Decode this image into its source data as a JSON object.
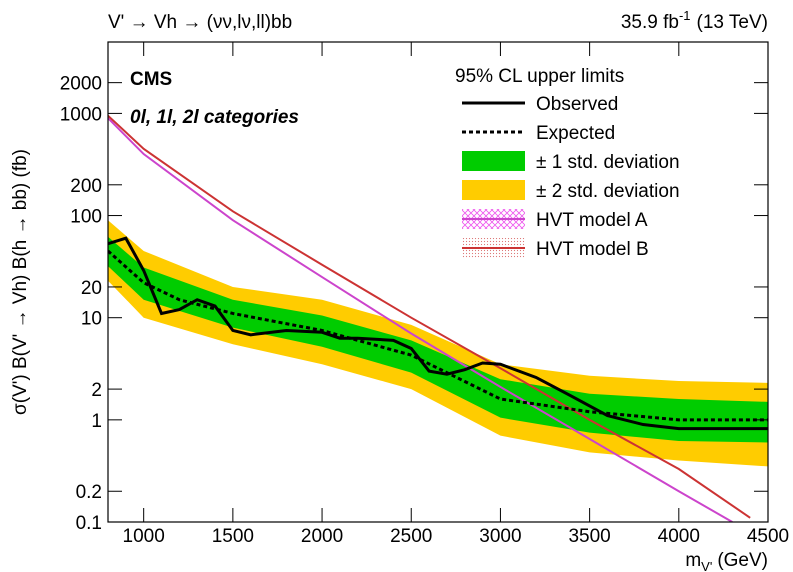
{
  "chart_data": {
    "type": "limit",
    "title_left": "V' → Vh → (νν,lν,ll)bb",
    "lumi": "35.9 fb",
    "lumi_sup": "-1",
    "energy": "(13 TeV)",
    "experiment": "CMS",
    "subtitle": "0l, 1l, 2l categories",
    "ylabel": "σ(V') B(V' → Vh) B(h → bb) (fb)",
    "xlabel_main": "m",
    "xlabel_sub": "V'",
    "xlabel_unit": "(GeV)",
    "legend_title": "95% CL upper limits",
    "xlim": [
      800,
      4500
    ],
    "xticks": [
      1000,
      1500,
      2000,
      2500,
      3000,
      3500,
      4000,
      4500
    ],
    "ylim": [
      0.1,
      5000
    ],
    "yticks": [
      0.1,
      0.2,
      1,
      2,
      10,
      20,
      100,
      200,
      1000,
      2000
    ],
    "log_y": true,
    "bands": [
      {
        "name": "± 2 std. deviation",
        "color": "#ffcc00",
        "x": [
          800,
          1000,
          1500,
          2000,
          2500,
          3000,
          3500,
          4000,
          4500
        ],
        "low": [
          23,
          10,
          5.5,
          3.5,
          2.0,
          0.7,
          0.48,
          0.4,
          0.35
        ],
        "high": [
          90,
          45,
          20,
          15,
          8.5,
          3.5,
          2.7,
          2.4,
          2.3
        ]
      },
      {
        "name": "± 1 std. deviation",
        "color": "#00cc00",
        "x": [
          800,
          1000,
          1500,
          2000,
          2500,
          3000,
          3500,
          4000,
          4500
        ],
        "low": [
          32,
          15,
          8.0,
          5.2,
          2.9,
          1.05,
          0.75,
          0.62,
          0.6
        ],
        "high": [
          62,
          31,
          15,
          10.5,
          6,
          2.5,
          1.8,
          1.6,
          1.5
        ]
      }
    ],
    "series": [
      {
        "name": "HVT model A",
        "color": "#cc44cc",
        "x": [
          800,
          1000,
          1500,
          2000,
          2500,
          3000,
          3500,
          4000,
          4300
        ],
        "values": [
          900,
          400,
          90,
          25,
          7,
          2.1,
          0.65,
          0.2,
          0.1
        ]
      },
      {
        "name": "HVT model B",
        "color": "#cc3333",
        "x": [
          800,
          1000,
          1500,
          2000,
          2500,
          3000,
          3500,
          4000,
          4400
        ],
        "values": [
          950,
          450,
          110,
          33,
          10,
          3.2,
          1.0,
          0.33,
          0.11
        ]
      },
      {
        "name": "Expected",
        "color": "#000000",
        "dash": true,
        "x": [
          800,
          1000,
          1200,
          1500,
          2000,
          2500,
          3000,
          3500,
          4000,
          4500
        ],
        "values": [
          45,
          22,
          15,
          11,
          7.5,
          4.3,
          1.6,
          1.2,
          1.0,
          1.0
        ]
      },
      {
        "name": "Observed",
        "color": "#000000",
        "x": [
          800,
          900,
          1000,
          1100,
          1200,
          1300,
          1400,
          1500,
          1600,
          1800,
          2000,
          2100,
          2200,
          2400,
          2500,
          2600,
          2700,
          2800,
          2900,
          3000,
          3200,
          3400,
          3600,
          3800,
          4000,
          4500
        ],
        "values": [
          53,
          60,
          29,
          11,
          12,
          15,
          13,
          7.5,
          6.8,
          7.5,
          7.2,
          6.3,
          6.3,
          6.0,
          5,
          3,
          2.8,
          3.1,
          3.6,
          3.5,
          2.6,
          1.7,
          1.1,
          0.9,
          0.82,
          0.82
        ]
      }
    ]
  }
}
